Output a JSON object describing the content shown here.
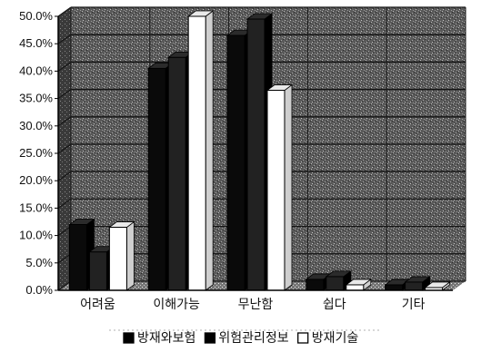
{
  "chart_data": {
    "type": "bar",
    "categories": [
      "어려움",
      "이해가능",
      "무난함",
      "쉽다",
      "기타"
    ],
    "series": [
      {
        "name": "방재와보험",
        "values": [
          12.0,
          40.5,
          46.5,
          2.0,
          1.0
        ],
        "color": "#0a0a0a"
      },
      {
        "name": "위험관리정보",
        "values": [
          7.0,
          42.5,
          49.5,
          2.5,
          1.5
        ],
        "color": "#222222"
      },
      {
        "name": "방재기술",
        "values": [
          11.5,
          50.0,
          36.5,
          1.0,
          0.5
        ],
        "color": "#ffffff"
      }
    ],
    "yticks": [
      "0.0%",
      "5.0%",
      "10.0%",
      "15.0%",
      "20.0%",
      "25.0%",
      "30.0%",
      "35.0%",
      "40.0%",
      "45.0%",
      "50.0%"
    ],
    "ylim": [
      0,
      50
    ],
    "grid": true,
    "legend_position": "bottom",
    "style": "3d-bars",
    "title": "",
    "xlabel": "",
    "ylabel": ""
  }
}
